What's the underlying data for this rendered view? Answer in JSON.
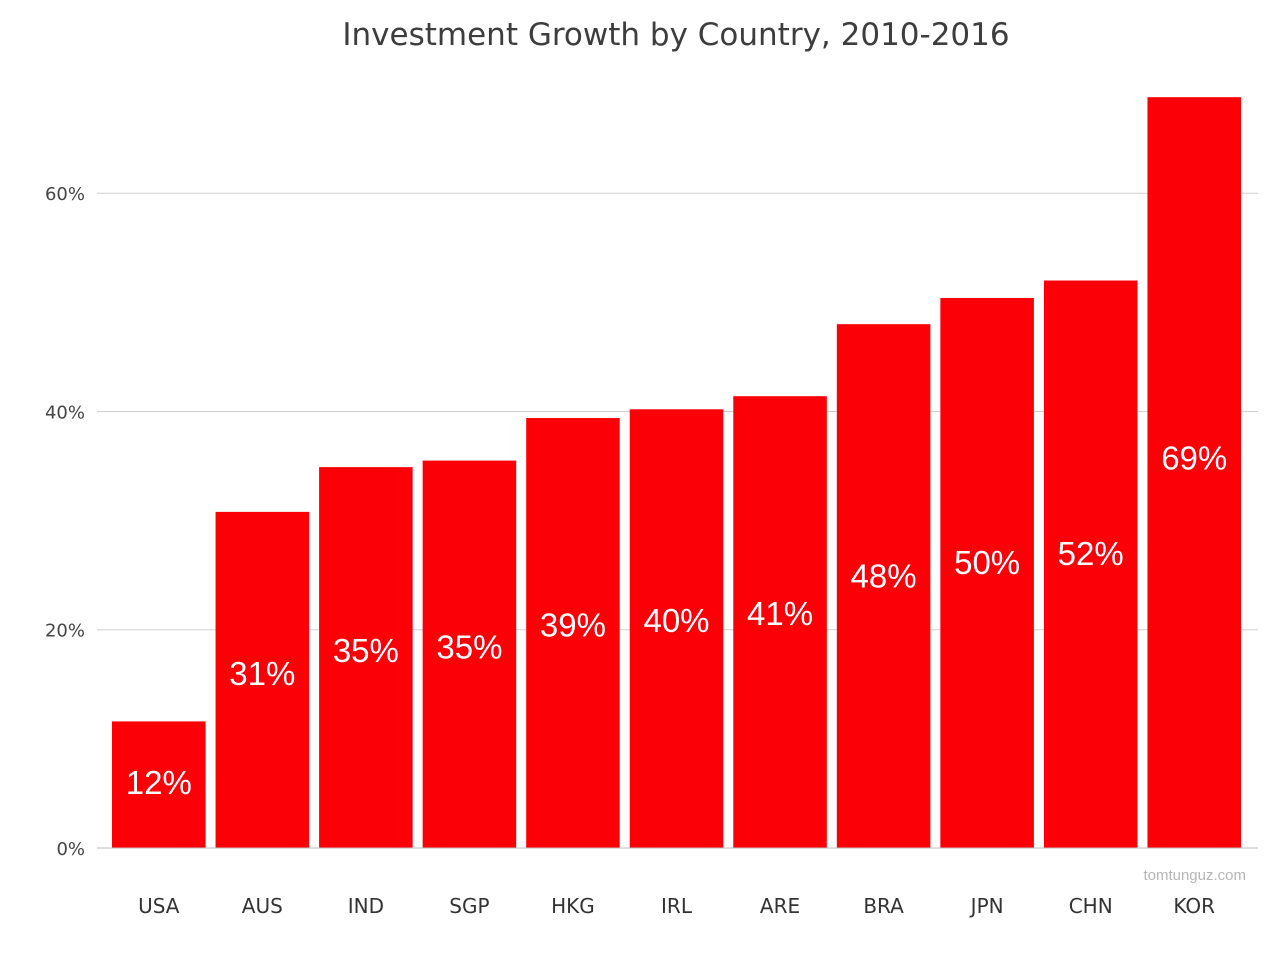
{
  "chart_data": {
    "type": "bar",
    "title": "Investment Growth by Country, 2010-2016",
    "xlabel": "",
    "ylabel": "",
    "ylim": [
      0,
      69
    ],
    "yticks": [
      0,
      20,
      40,
      60
    ],
    "ytick_labels": [
      "0%",
      "20%",
      "40%",
      "60%"
    ],
    "grid": true,
    "bar_color": "#fb0007",
    "categories": [
      "USA",
      "AUS",
      "IND",
      "SGP",
      "HKG",
      "IRL",
      "ARE",
      "BRA",
      "JPN",
      "CHN",
      "KOR"
    ],
    "values": [
      11.6,
      30.8,
      34.9,
      35.5,
      39.4,
      40.2,
      41.4,
      48.0,
      50.4,
      52.0,
      68.8
    ],
    "data_labels": [
      "12%",
      "31%",
      "35%",
      "35%",
      "39%",
      "40%",
      "41%",
      "48%",
      "50%",
      "52%",
      "69%"
    ]
  },
  "watermark": "tomtunguz.com"
}
